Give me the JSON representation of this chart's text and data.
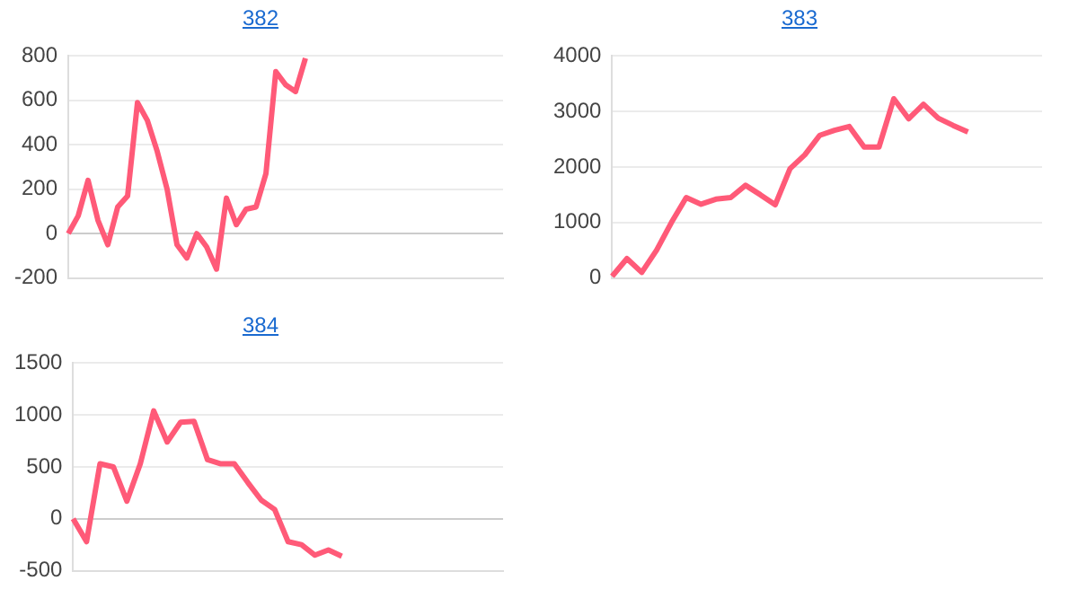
{
  "chart_data": [
    {
      "type": "line",
      "title": "382",
      "categories": [
        null,
        null,
        null,
        null,
        null,
        null,
        null,
        null,
        null,
        null,
        null,
        null,
        null,
        null,
        null,
        null,
        null,
        null,
        null,
        null,
        null,
        null,
        null,
        null,
        null,
        null,
        null,
        null,
        null,
        null,
        null,
        null,
        null,
        null,
        null,
        null,
        null,
        null,
        null,
        null,
        null,
        null,
        null,
        null,
        null
      ],
      "series": [
        {
          "color": "#ff5a78",
          "values": [
            0,
            80,
            240,
            60,
            -50,
            120,
            170,
            590,
            510,
            370,
            200,
            -50,
            -110,
            0,
            -60,
            -160,
            160,
            40,
            110,
            120,
            270,
            730,
            670,
            640,
            790,
            null,
            null,
            null,
            null,
            null,
            null,
            null,
            null,
            null,
            null,
            null,
            null,
            null,
            null,
            null,
            null,
            null,
            null,
            null,
            null
          ]
        }
      ],
      "ylim": [
        -200,
        800
      ],
      "yticks": [
        -200,
        0,
        200,
        400,
        600,
        800
      ],
      "grid": "y",
      "legend": false,
      "marker": "none",
      "tick_labels": "y"
    },
    {
      "type": "line",
      "title": "383",
      "categories": [
        null,
        null,
        null,
        null,
        null,
        null,
        null,
        null,
        null,
        null,
        null,
        null,
        null,
        null,
        null,
        null,
        null,
        null,
        null,
        null,
        null,
        null,
        null,
        null,
        null,
        null,
        null,
        null,
        null,
        null
      ],
      "series": [
        {
          "color": "#ff5a78",
          "values": [
            30,
            350,
            100,
            500,
            1000,
            1450,
            1330,
            1420,
            1450,
            1670,
            1500,
            1320,
            1970,
            2220,
            2570,
            2660,
            2730,
            2360,
            2360,
            3230,
            2870,
            3130,
            2880,
            2750,
            2630,
            null,
            null,
            null,
            null,
            null
          ]
        }
      ],
      "ylim": [
        0,
        4000
      ],
      "yticks": [
        0,
        1000,
        2000,
        3000,
        4000
      ],
      "grid": "y",
      "legend": false,
      "marker": "none",
      "tick_labels": "y"
    },
    {
      "type": "line",
      "title": "384",
      "categories": [
        null,
        null,
        null,
        null,
        null,
        null,
        null,
        null,
        null,
        null,
        null,
        null,
        null,
        null,
        null,
        null,
        null,
        null,
        null,
        null,
        null,
        null,
        null,
        null,
        null,
        null,
        null,
        null,
        null,
        null,
        null,
        null,
        null
      ],
      "series": [
        {
          "color": "#ff5a78",
          "values": [
            0,
            -220,
            530,
            500,
            170,
            530,
            1040,
            740,
            930,
            940,
            570,
            530,
            530,
            350,
            180,
            90,
            -220,
            -250,
            -350,
            -300,
            -360,
            null,
            null,
            null,
            null,
            null,
            null,
            null,
            null,
            null,
            null,
            null,
            null
          ]
        }
      ],
      "ylim": [
        -500,
        1500
      ],
      "yticks": [
        -500,
        0,
        500,
        1000,
        1500
      ],
      "grid": "y",
      "legend": false,
      "marker": "none",
      "tick_labels": "y"
    }
  ]
}
